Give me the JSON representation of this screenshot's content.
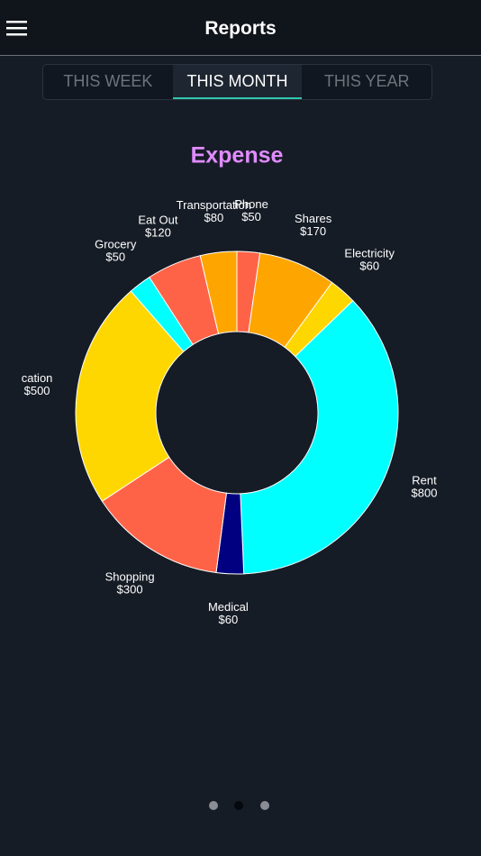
{
  "header": {
    "title": "Reports"
  },
  "tabs": {
    "items": [
      "THIS WEEK",
      "THIS MONTH",
      "THIS YEAR"
    ],
    "selected": 1
  },
  "chart_data": {
    "type": "donut",
    "title": "Expense",
    "title_color": "#e08cff",
    "categories": [
      "Phone",
      "Shares",
      "Electricity",
      "Rent",
      "Medical",
      "Shopping",
      "cation",
      "Grocery",
      "Eat Out",
      "Transportation"
    ],
    "values": [
      50,
      170,
      60,
      800,
      60,
      300,
      500,
      50,
      120,
      80
    ],
    "value_labels": [
      "$50",
      "$170",
      "$60",
      "$800",
      "$60",
      "$300",
      "$500",
      "$50",
      "$120",
      "$80"
    ],
    "colors": [
      "#ff6347",
      "#ffa500",
      "#ffd700",
      "#00ffff",
      "#000080",
      "#ff6347",
      "#ffd700",
      "#00ffff",
      "#ff6347",
      "#ffa500"
    ]
  }
}
